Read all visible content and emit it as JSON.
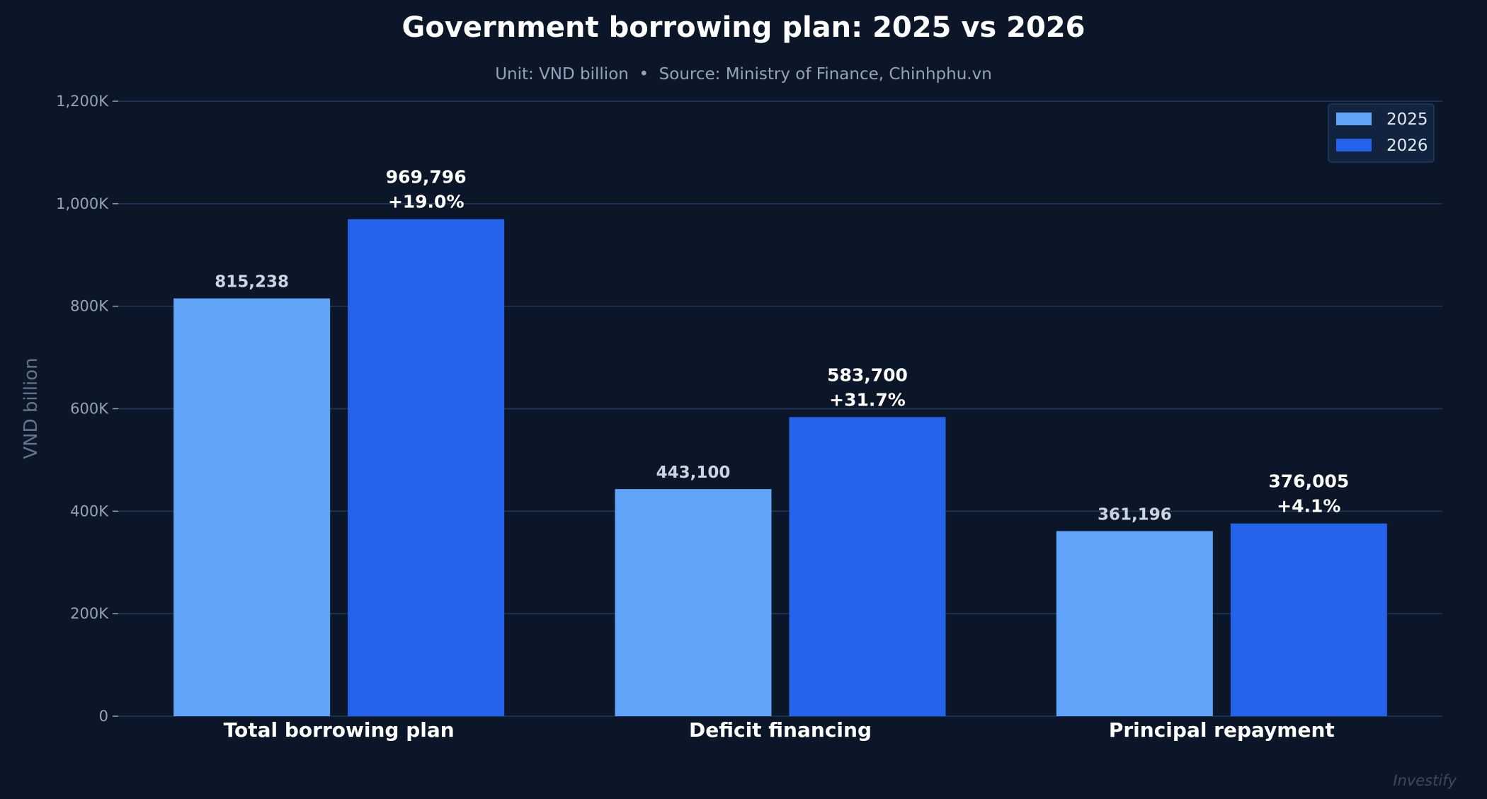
{
  "chart_data": {
    "type": "bar",
    "title": "Government borrowing plan: 2025 vs 2026",
    "subtitle": "Unit: VND billion  •  Source: Ministry of Finance, Chinhphu.vn",
    "xlabel": "",
    "ylabel": "VND billion",
    "ylim": [
      0,
      1200000
    ],
    "yticks": [
      0,
      200000,
      400000,
      600000,
      800000,
      1000000,
      1200000
    ],
    "ytick_labels": [
      "0",
      "200K",
      "400K",
      "600K",
      "800K",
      "1,000K",
      "1,200K"
    ],
    "grid": true,
    "legend_position": "top-right",
    "categories": [
      "Total borrowing plan",
      "Deficit financing",
      "Principal repayment"
    ],
    "series": [
      {
        "name": "2025",
        "color": "#60a5fa",
        "values": [
          815238,
          443100,
          361196
        ],
        "labels": [
          "815,238",
          "443,100",
          "361,196"
        ]
      },
      {
        "name": "2026",
        "color": "#2563eb",
        "values": [
          969796,
          583700,
          376005
        ],
        "labels": [
          "969,796",
          "583,700",
          "376,005"
        ],
        "change_labels": [
          "+19.0%",
          "+31.7%",
          "+4.1%"
        ]
      }
    ],
    "watermark": "Investify"
  },
  "colors": {
    "background": "#0b1628",
    "grid": "#1e3a5f",
    "text": "#ffffff",
    "muted": "#94a3b8"
  }
}
